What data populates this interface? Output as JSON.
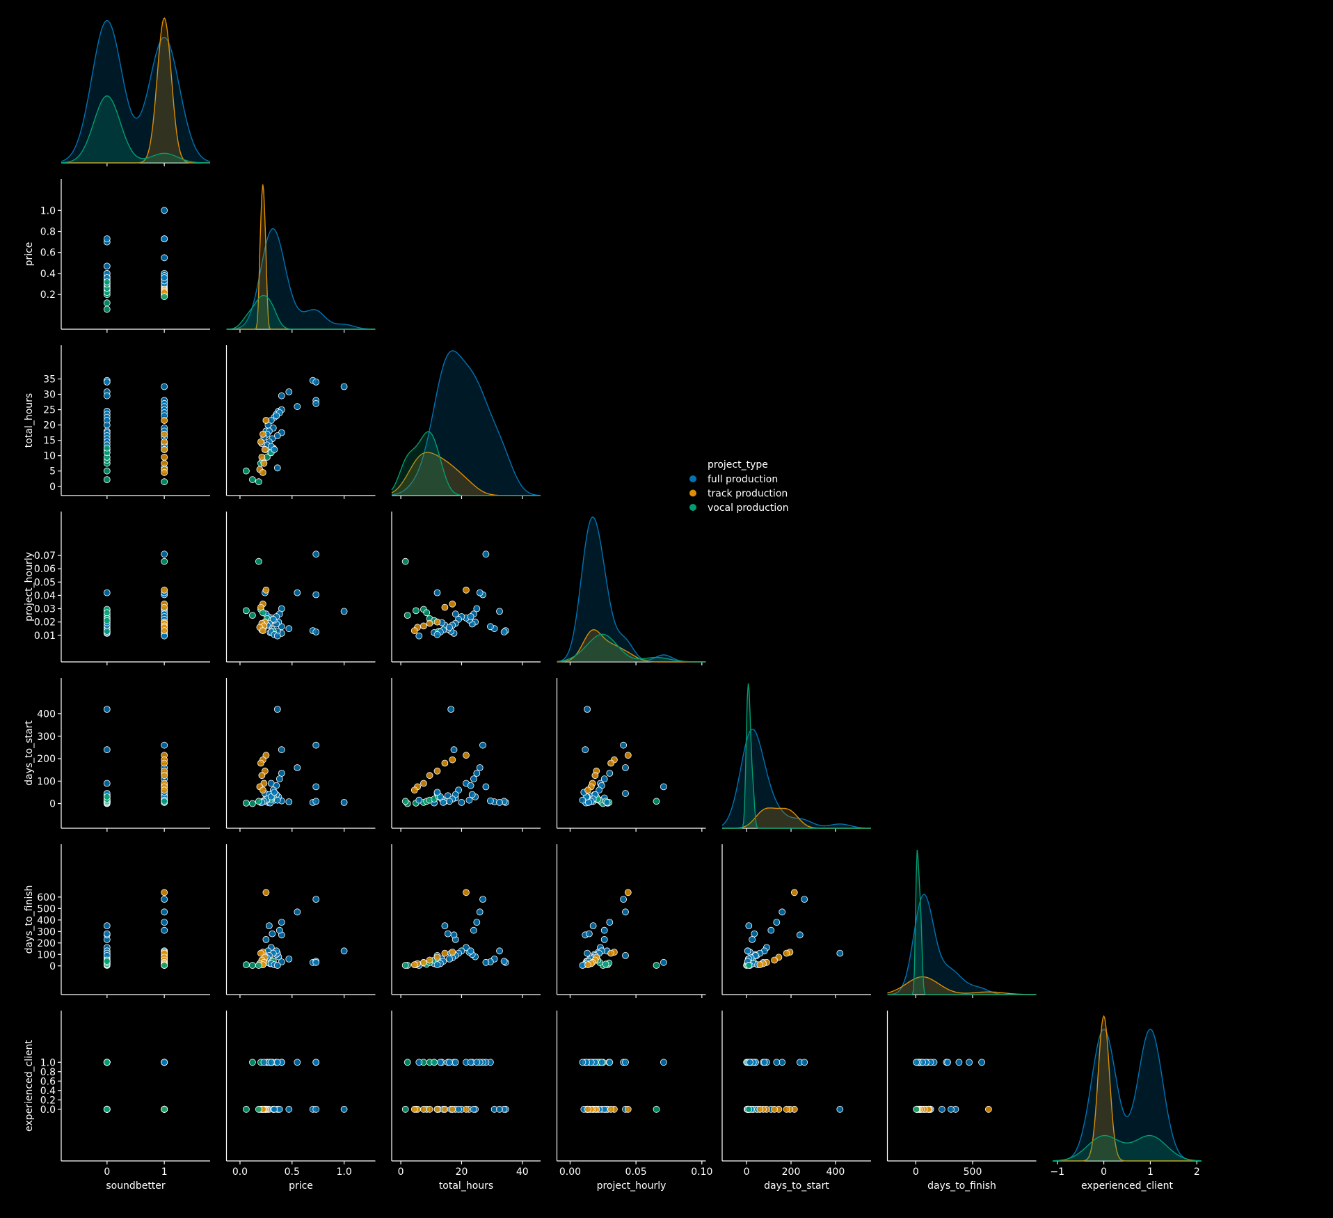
{
  "chart_data": {
    "type": "scatter",
    "kind": "pairplot",
    "corner": true,
    "diag_kind": "kde",
    "variables": [
      "soundbetter",
      "price",
      "total_hours",
      "project_hourly",
      "days_to_start",
      "days_to_finish",
      "experienced_client"
    ],
    "hue": "project_type",
    "legend": {
      "title": "project_type",
      "placement": "center-right",
      "entries": [
        "full production",
        "track production",
        "vocal production"
      ]
    },
    "colors": {
      "full production": "#0173b2",
      "track production": "#de8f05",
      "vocal production": "#029e73"
    },
    "axis_ranges": {
      "soundbetter": [
        -0.8,
        1.8
      ],
      "price": [
        -0.13,
        1.3
      ],
      "total_hours": [
        -3,
        46
      ],
      "project_hourly": [
        -0.01,
        0.103
      ],
      "days_to_start": [
        -110,
        560
      ],
      "days_to_finish": [
        -250,
        1060
      ],
      "experienced_client": [
        -1.1,
        2.1
      ]
    },
    "ticks": {
      "soundbetter": {
        "values": [
          0,
          1
        ],
        "labels": [
          "0",
          "1"
        ]
      },
      "price": {
        "values": [
          0.0,
          0.5,
          1.0
        ],
        "labels": [
          "0.0",
          "0.5",
          "1.0"
        ]
      },
      "price_y": {
        "values": [
          0.2,
          0.4,
          0.6,
          0.8,
          1.0
        ],
        "labels": [
          "0.2",
          "0.4",
          "0.6",
          "0.8",
          "1.0"
        ]
      },
      "total_hours": {
        "values": [
          0,
          20,
          40
        ],
        "labels": [
          "0",
          "20",
          "40"
        ]
      },
      "total_hours_y": {
        "values": [
          0,
          5,
          10,
          15,
          20,
          25,
          30,
          35
        ],
        "labels": [
          "0",
          "5",
          "10",
          "15",
          "20",
          "25",
          "30",
          "35"
        ]
      },
      "project_hourly": {
        "values": [
          0.0,
          0.05,
          0.1
        ],
        "labels": [
          "0.00",
          "0.05",
          "0.10"
        ]
      },
      "project_hourly_y": {
        "values": [
          0.01,
          0.02,
          0.03,
          0.04,
          0.05,
          0.06,
          0.07
        ],
        "labels": [
          "0.01",
          "0.02",
          "0.03",
          "0.04",
          "0.05",
          "0.06",
          "0.07"
        ]
      },
      "days_to_start": {
        "values": [
          0,
          200,
          400
        ],
        "labels": [
          "0",
          "200",
          "400"
        ]
      },
      "days_to_start_y": {
        "values": [
          0,
          100,
          200,
          300,
          400
        ],
        "labels": [
          "0",
          "100",
          "200",
          "300",
          "400"
        ]
      },
      "days_to_finish": {
        "values": [
          0,
          500
        ],
        "labels": [
          "0",
          "500"
        ]
      },
      "days_to_finish_y": {
        "values": [
          0,
          100,
          200,
          300,
          400,
          500,
          600
        ],
        "labels": [
          "0",
          "100",
          "200",
          "300",
          "400",
          "500",
          "600"
        ]
      },
      "experienced_client": {
        "values": [
          -1,
          0,
          1,
          2
        ],
        "labels": [
          "−1",
          "0",
          "1",
          "2"
        ]
      },
      "experienced_client_y": {
        "values": [
          0.0,
          0.2,
          0.4,
          0.6,
          0.8,
          1.0
        ],
        "labels": [
          "0.0",
          "0.2",
          "0.4",
          "0.6",
          "0.8",
          "1.0"
        ]
      }
    },
    "records": {
      "fields": [
        "project_type",
        "soundbetter",
        "price",
        "total_hours",
        "project_hourly",
        "days_to_start",
        "days_to_finish",
        "experienced_client"
      ],
      "rows": [
        [
          "full production",
          0,
          0.7,
          34.5,
          0.0135,
          5,
          30,
          0
        ],
        [
          "full production",
          0,
          0.73,
          34.0,
          0.0125,
          10,
          40,
          0
        ],
        [
          "full production",
          0,
          0.47,
          30.8,
          0.015,
          8,
          60,
          0
        ],
        [
          "full production",
          0,
          0.4,
          29.5,
          0.0165,
          12,
          35,
          1
        ],
        [
          "full production",
          0,
          0.37,
          24.5,
          0.02,
          30,
          80,
          0
        ],
        [
          "full production",
          0,
          0.35,
          23.5,
          0.0185,
          40,
          100,
          1
        ],
        [
          "full production",
          0,
          0.33,
          22.5,
          0.0215,
          15,
          120,
          0
        ],
        [
          "full production",
          0,
          0.3,
          21.5,
          0.023,
          90,
          160,
          1
        ],
        [
          "full production",
          0,
          0.27,
          20.0,
          0.024,
          5,
          130,
          0
        ],
        [
          "full production",
          0,
          0.25,
          18.0,
          0.026,
          25,
          230,
          0
        ],
        [
          "full production",
          0,
          0.4,
          17.5,
          0.0115,
          240,
          270,
          1
        ],
        [
          "full production",
          0,
          0.36,
          16.5,
          0.013,
          420,
          110,
          0
        ],
        [
          "full production",
          0,
          0.31,
          15.5,
          0.0145,
          35,
          280,
          1
        ],
        [
          "full production",
          0,
          0.28,
          14.5,
          0.0175,
          10,
          350,
          0
        ],
        [
          "full production",
          0,
          0.26,
          13.5,
          0.0195,
          20,
          60,
          1
        ],
        [
          "full production",
          0,
          0.24,
          12.0,
          0.042,
          45,
          90,
          0
        ],
        [
          "full production",
          0,
          0.29,
          11.0,
          0.012,
          3,
          20,
          1
        ],
        [
          "vocal production",
          0,
          0.12,
          2.2,
          0.025,
          0,
          5,
          1
        ],
        [
          "vocal production",
          0,
          0.06,
          5.0,
          0.0285,
          2,
          10,
          0
        ],
        [
          "vocal production",
          0,
          0.2,
          7.5,
          0.0295,
          5,
          25,
          1
        ],
        [
          "vocal production",
          0,
          0.22,
          8.5,
          0.027,
          10,
          15,
          0
        ],
        [
          "vocal production",
          0,
          0.26,
          9.5,
          0.0225,
          15,
          30,
          1
        ],
        [
          "vocal production",
          0,
          0.3,
          11.0,
          0.021,
          20,
          50,
          1
        ],
        [
          "vocal production",
          0,
          0.32,
          12.5,
          0.013,
          30,
          40,
          0
        ],
        [
          "full production",
          1,
          1.0,
          32.5,
          0.028,
          5,
          130,
          0
        ],
        [
          "full production",
          1,
          0.73,
          28.0,
          0.071,
          75,
          30,
          1
        ],
        [
          "full production",
          1,
          0.73,
          27.0,
          0.0405,
          260,
          580,
          1
        ],
        [
          "full production",
          1,
          0.55,
          26.0,
          0.042,
          160,
          470,
          1
        ],
        [
          "full production",
          1,
          0.4,
          25.0,
          0.03,
          135,
          380,
          1
        ],
        [
          "full production",
          1,
          0.38,
          24.0,
          0.026,
          110,
          310,
          0
        ],
        [
          "full production",
          1,
          0.35,
          23.0,
          0.024,
          80,
          130,
          1
        ],
        [
          "full production",
          1,
          0.32,
          19.0,
          0.022,
          60,
          110,
          0
        ],
        [
          "full production",
          1,
          0.28,
          18.0,
          0.019,
          40,
          90,
          1
        ],
        [
          "full production",
          1,
          0.26,
          17.0,
          0.0175,
          20,
          70,
          0
        ],
        [
          "full production",
          1,
          0.23,
          16.0,
          0.016,
          10,
          60,
          1
        ],
        [
          "full production",
          1,
          0.21,
          14.0,
          0.014,
          5,
          40,
          0
        ],
        [
          "full production",
          1,
          0.3,
          13.0,
          0.0125,
          30,
          20,
          1
        ],
        [
          "full production",
          1,
          0.33,
          12.0,
          0.0105,
          50,
          10,
          0
        ],
        [
          "full production",
          1,
          0.36,
          6.0,
          0.0095,
          15,
          5,
          1
        ],
        [
          "track production",
          1,
          0.25,
          21.5,
          0.044,
          215,
          640,
          0
        ],
        [
          "track production",
          1,
          0.22,
          17.0,
          0.0335,
          195,
          120,
          0
        ],
        [
          "track production",
          1,
          0.2,
          14.5,
          0.031,
          180,
          110,
          0
        ],
        [
          "track production",
          1,
          0.24,
          12.0,
          0.02,
          145,
          75,
          0
        ],
        [
          "track production",
          1,
          0.21,
          9.5,
          0.019,
          125,
          50,
          0
        ],
        [
          "track production",
          1,
          0.23,
          7.5,
          0.017,
          90,
          30,
          0
        ],
        [
          "track production",
          1,
          0.19,
          5.5,
          0.016,
          75,
          20,
          0
        ],
        [
          "track production",
          1,
          0.22,
          4.5,
          0.0135,
          60,
          10,
          0
        ],
        [
          "vocal production",
          1,
          0.18,
          1.5,
          0.0655,
          10,
          5,
          0
        ]
      ]
    }
  }
}
